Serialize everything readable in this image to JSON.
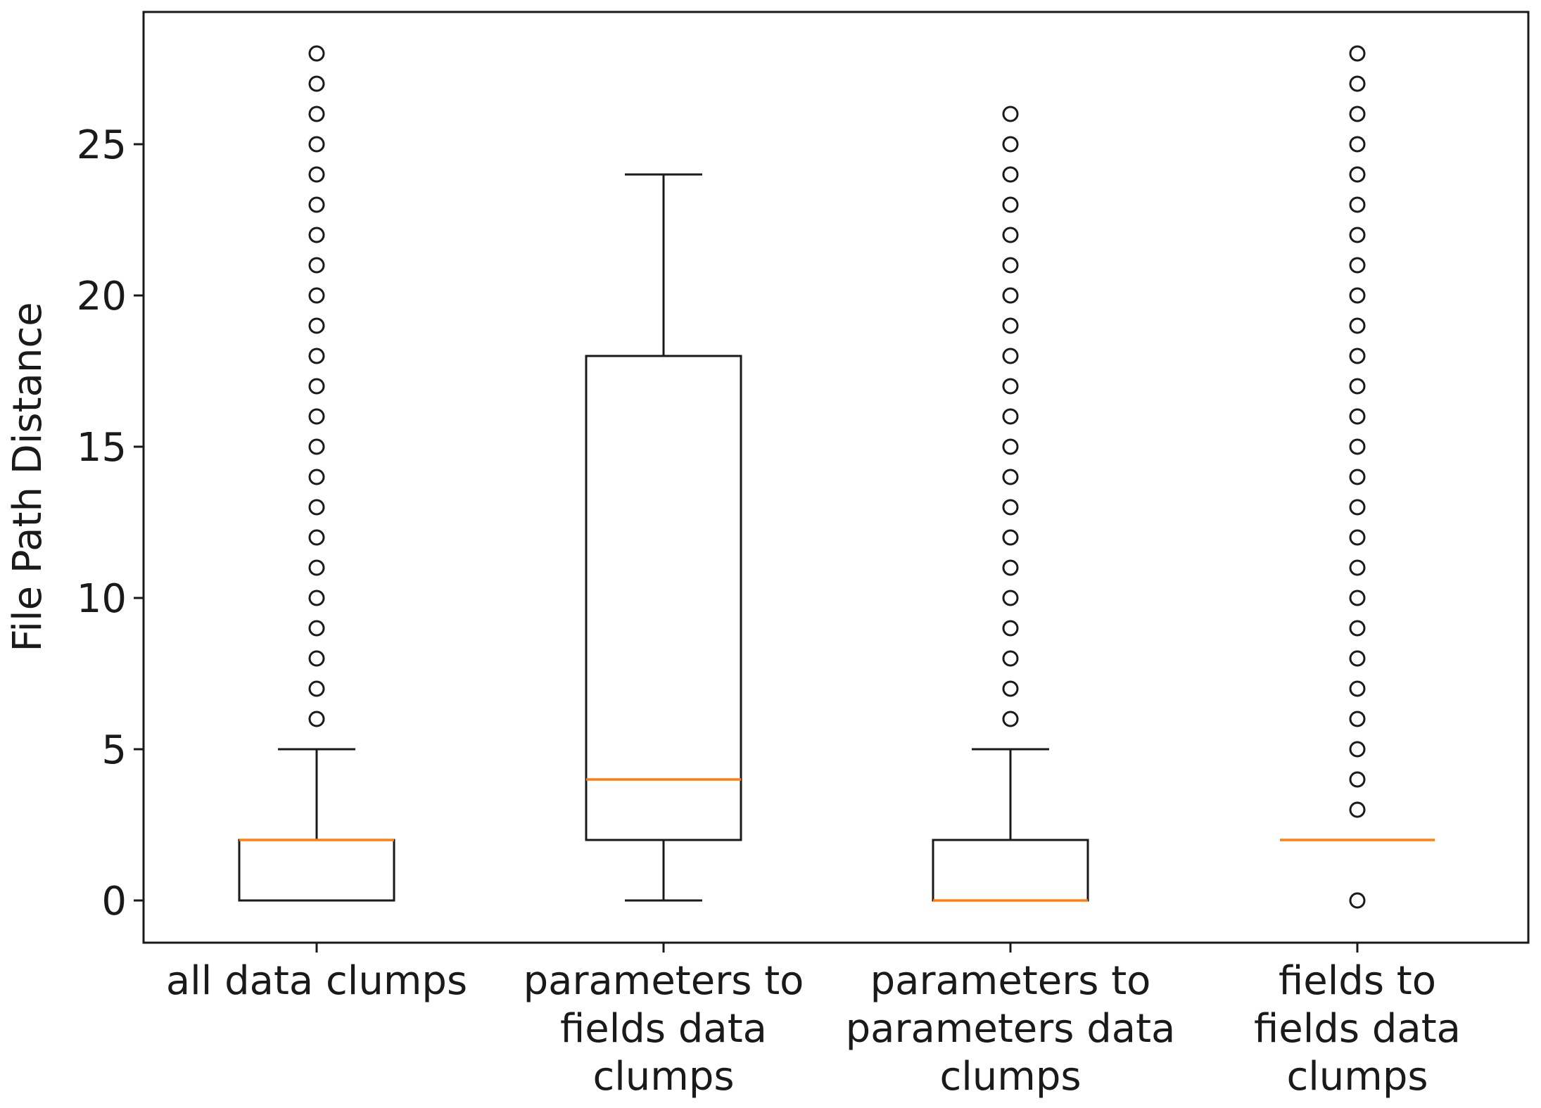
{
  "chart_data": {
    "type": "box",
    "ylabel": "File Path Distance",
    "ylim": [
      -1.4,
      29.4
    ],
    "yticks": [
      0,
      5,
      10,
      15,
      20,
      25
    ],
    "grid": false,
    "categories": [
      [
        "all data clumps"
      ],
      [
        "parameters to",
        "fields data",
        "clumps"
      ],
      [
        "parameters to",
        "parameters data",
        "clumps"
      ],
      [
        "fields to",
        "fields data",
        "clumps"
      ]
    ],
    "boxes": [
      {
        "whisker_low": 0,
        "q1": 0,
        "median": 2,
        "q3": 2,
        "whisker_high": 5,
        "outliers": [
          6,
          7,
          8,
          9,
          10,
          11,
          12,
          13,
          14,
          15,
          16,
          17,
          18,
          19,
          20,
          21,
          22,
          23,
          24,
          25,
          26,
          27,
          28
        ]
      },
      {
        "whisker_low": 0,
        "q1": 2,
        "median": 4,
        "q3": 18,
        "whisker_high": 24,
        "outliers": []
      },
      {
        "whisker_low": 0,
        "q1": 0,
        "median": 0,
        "q3": 2,
        "whisker_high": 5,
        "outliers": [
          6,
          7,
          8,
          9,
          10,
          11,
          12,
          13,
          14,
          15,
          16,
          17,
          18,
          19,
          20,
          21,
          22,
          23,
          24,
          25,
          26
        ]
      },
      {
        "whisker_low": 2,
        "q1": 2,
        "median": 2,
        "q3": 2,
        "whisker_high": 2,
        "outliers": [
          0,
          3,
          4,
          5,
          6,
          7,
          8,
          9,
          10,
          11,
          12,
          13,
          14,
          15,
          16,
          17,
          18,
          19,
          20,
          21,
          22,
          23,
          24,
          25,
          26,
          27,
          28
        ]
      }
    ],
    "colors": {
      "box": "#1a1a1a",
      "median": "#ff7f0e",
      "axis": "#1a1a1a"
    }
  }
}
